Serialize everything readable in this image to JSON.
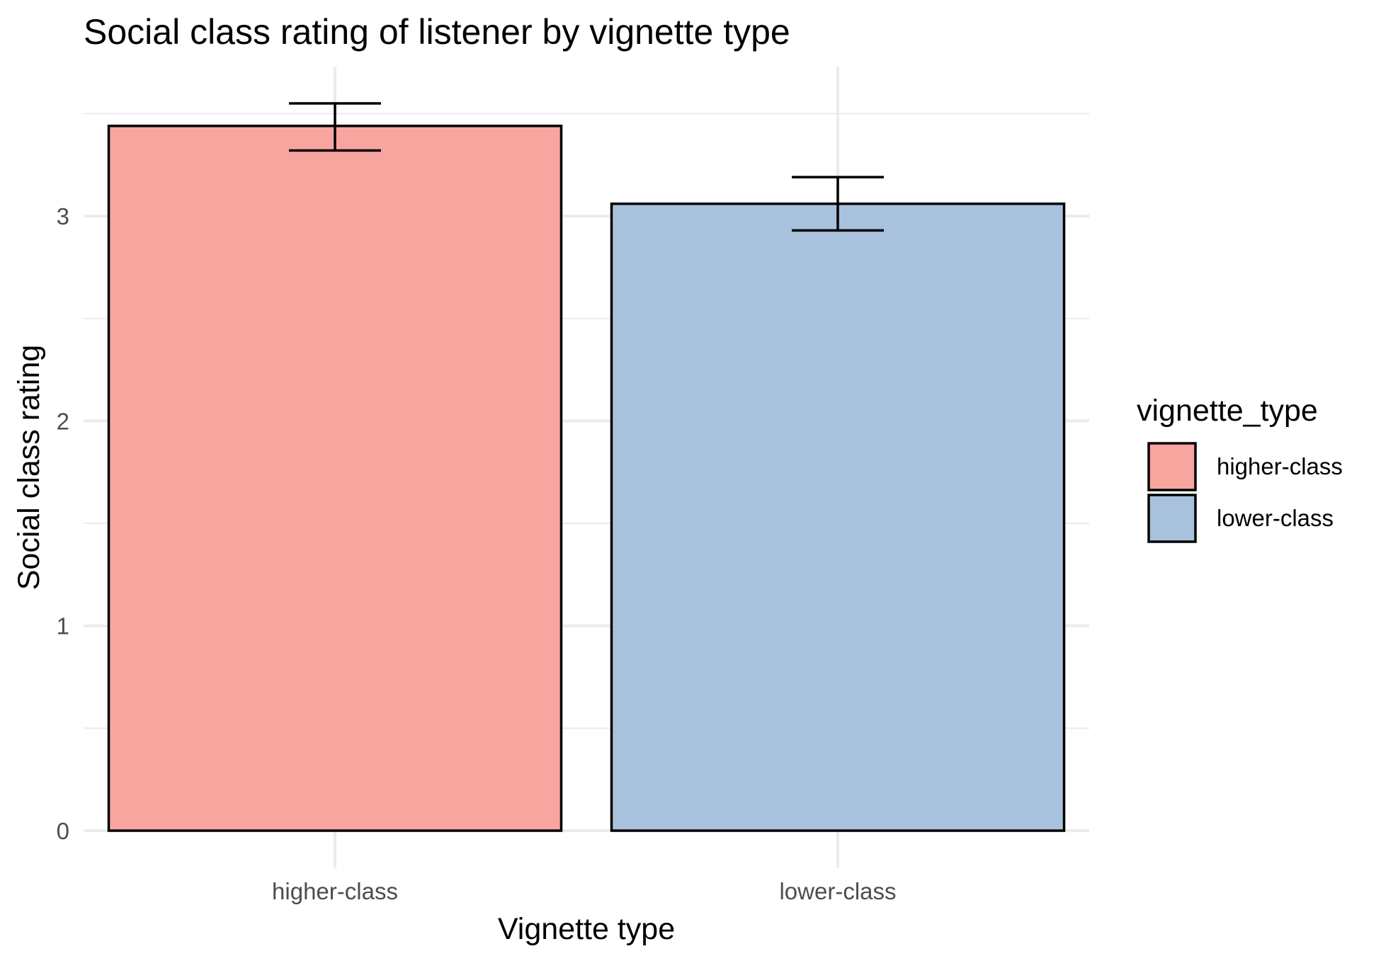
{
  "chart_data": {
    "type": "bar",
    "title": "Social class rating of listener by vignette type",
    "xlabel": "Vignette type",
    "ylabel": "Social class rating",
    "categories": [
      "higher-class",
      "lower-class"
    ],
    "values": [
      3.44,
      3.06
    ],
    "error_bars": [
      {
        "low": 3.32,
        "high": 3.55
      },
      {
        "low": 2.93,
        "high": 3.19
      }
    ],
    "colors": [
      "#F8A59F",
      "#A8C1DC"
    ],
    "ylim": [
      0,
      3.6
    ],
    "yticks": [
      0,
      1,
      2,
      3
    ],
    "grid": true,
    "legend": {
      "title": "vignette_type",
      "position": "right",
      "entries": [
        "higher-class",
        "lower-class"
      ]
    }
  }
}
